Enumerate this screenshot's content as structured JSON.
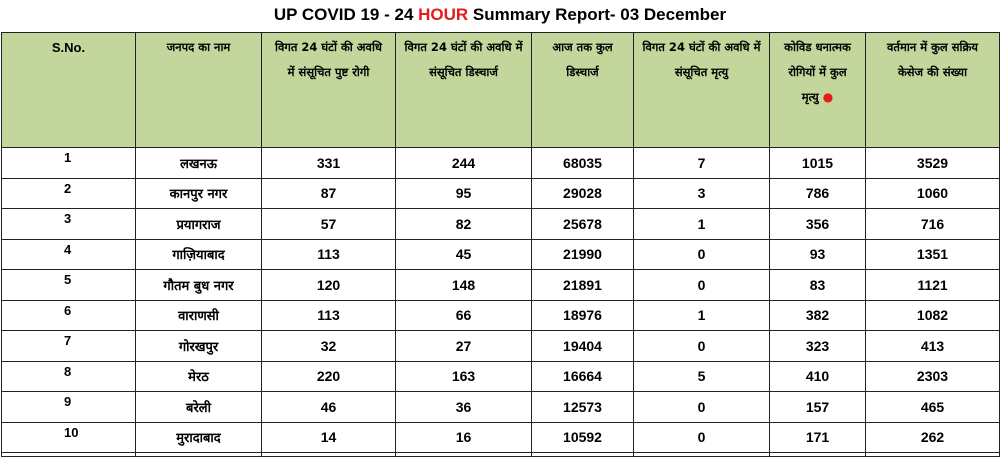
{
  "report": {
    "title_prefix": "UP COVID 19 - 24 ",
    "title_highlight": "HOUR",
    "title_suffix": " Summary Report-  03 December",
    "highlight_color": "#e31b1b",
    "header_bg": "#c3d69b"
  },
  "headers": {
    "sno": "S.No.",
    "district": "जनपद का नाम",
    "positive_24h": "विगत 24 घंटों की अवधि में संसूचित पुष्ट रोगी",
    "discharge_24h": "विगत 24 घंटों की अवधि में संसूचित डिस्चार्ज",
    "total_discharge": "आज तक कुल डिस्चार्ज",
    "death_24h": "विगत 24 घंटों की अवधि में संसूचित मृत्यु",
    "total_deaths": "कोविड धनात्मक रोगियों में कुल मृत्यु",
    "active": "वर्तमान में कुल सक्रिय केसेज की संख्या"
  },
  "rows": [
    {
      "sno": "1",
      "district": "लखनऊ",
      "positive": "331",
      "discharge": "244",
      "total_discharge": "68035",
      "deaths": "7",
      "total_deaths": "1015",
      "active": "3529"
    },
    {
      "sno": "2",
      "district": "कानपुर नगर",
      "positive": "87",
      "discharge": "95",
      "total_discharge": "29028",
      "deaths": "3",
      "total_deaths": "786",
      "active": "1060"
    },
    {
      "sno": "3",
      "district": "प्रयागराज",
      "positive": "57",
      "discharge": "82",
      "total_discharge": "25678",
      "deaths": "1",
      "total_deaths": "356",
      "active": "716"
    },
    {
      "sno": "4",
      "district": "गाज़ियाबाद",
      "positive": "113",
      "discharge": "45",
      "total_discharge": "21990",
      "deaths": "0",
      "total_deaths": "93",
      "active": "1351"
    },
    {
      "sno": "5",
      "district": "गौतम बुध नगर",
      "positive": "120",
      "discharge": "148",
      "total_discharge": "21891",
      "deaths": "0",
      "total_deaths": "83",
      "active": "1121"
    },
    {
      "sno": "6",
      "district": "वाराणसी",
      "positive": "113",
      "discharge": "66",
      "total_discharge": "18976",
      "deaths": "1",
      "total_deaths": "382",
      "active": "1082"
    },
    {
      "sno": "7",
      "district": "गोरखपुर",
      "positive": "32",
      "discharge": "27",
      "total_discharge": "19404",
      "deaths": "0",
      "total_deaths": "323",
      "active": "413"
    },
    {
      "sno": "8",
      "district": "मेरठ",
      "positive": "220",
      "discharge": "163",
      "total_discharge": "16664",
      "deaths": "5",
      "total_deaths": "410",
      "active": "2303"
    },
    {
      "sno": "9",
      "district": "बरेली",
      "positive": "46",
      "discharge": "36",
      "total_discharge": "12573",
      "deaths": "0",
      "total_deaths": "157",
      "active": "465"
    },
    {
      "sno": "10",
      "district": "मुरादाबाद",
      "positive": "14",
      "discharge": "16",
      "total_discharge": "10592",
      "deaths": "0",
      "total_deaths": "171",
      "active": "262"
    }
  ]
}
